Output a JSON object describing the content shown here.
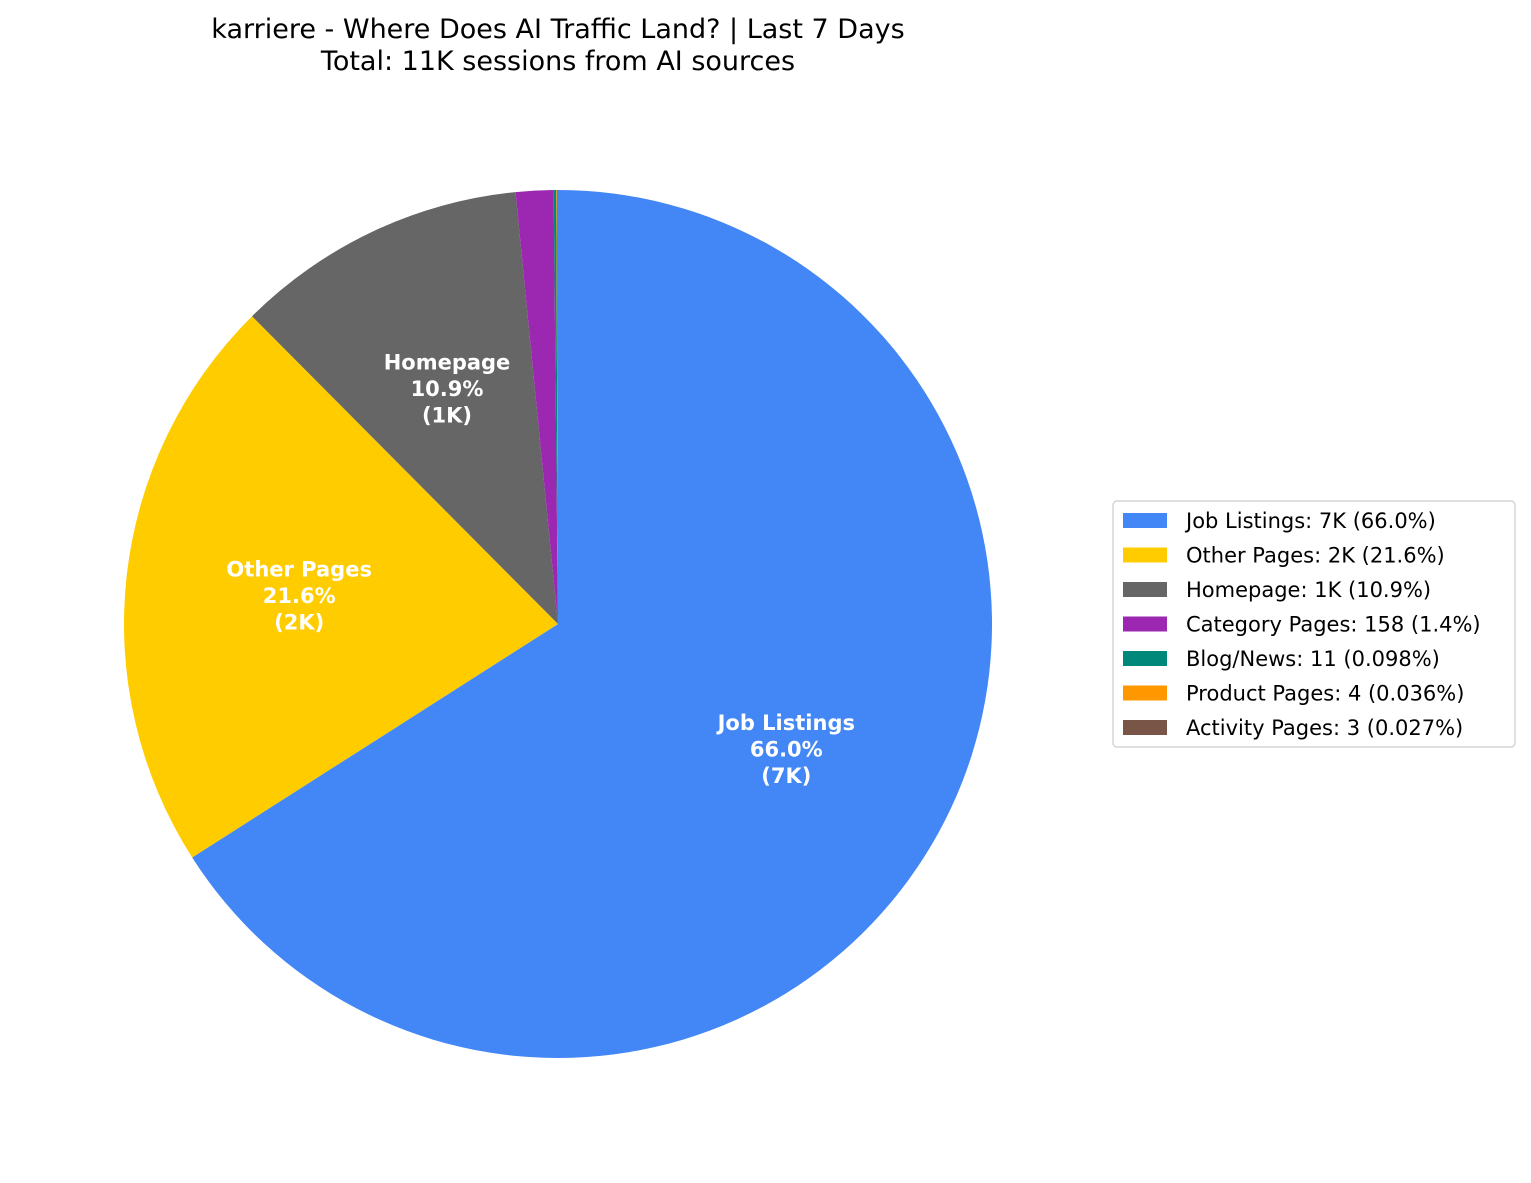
{
  "chart_data": {
    "type": "pie",
    "title": "karriere - Where Does AI Traffic Land? | Last 7 Days",
    "subtitle": "Total: 11K sessions from AI sources",
    "start_angle_deg": 90,
    "direction": "clockwise",
    "legend_position": "right",
    "slices": [
      {
        "name": "Job Listings",
        "percent": 66.0,
        "value_label": "7K",
        "color": "#4287f5",
        "legend_label": "Job Listings: 7K (66.0%)",
        "show_inside_label": true
      },
      {
        "name": "Other Pages",
        "percent": 21.6,
        "value_label": "2K",
        "color": "#ffcc00",
        "legend_label": "Other Pages: 2K (21.6%)",
        "show_inside_label": true
      },
      {
        "name": "Homepage",
        "percent": 10.9,
        "value_label": "1K",
        "color": "#666666",
        "legend_label": "Homepage: 1K (10.9%)",
        "show_inside_label": true
      },
      {
        "name": "Category Pages",
        "percent": 1.4,
        "value_label": "158",
        "color": "#9c27b0",
        "legend_label": "Category Pages: 158 (1.4%)",
        "show_inside_label": false
      },
      {
        "name": "Blog/News",
        "percent": 0.098,
        "value_label": "11",
        "color": "#00897b",
        "legend_label": "Blog/News: 11 (0.098%)",
        "show_inside_label": false
      },
      {
        "name": "Product Pages",
        "percent": 0.036,
        "value_label": "4",
        "color": "#ff9800",
        "legend_label": "Product Pages: 4 (0.036%)",
        "show_inside_label": false
      },
      {
        "name": "Activity Pages",
        "percent": 0.027,
        "value_label": "3",
        "color": "#795548",
        "legend_label": "Activity Pages: 3 (0.027%)",
        "show_inside_label": false
      }
    ]
  }
}
